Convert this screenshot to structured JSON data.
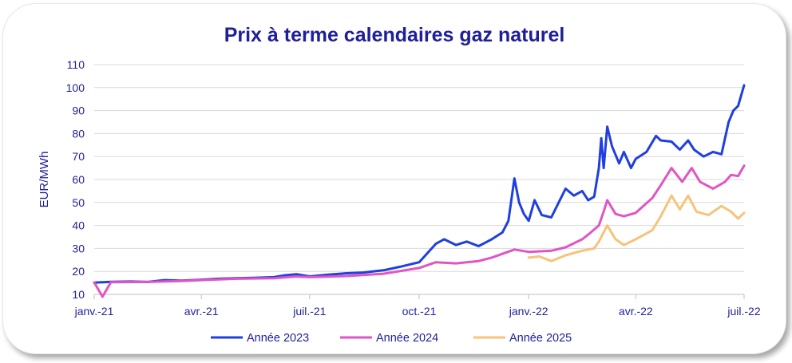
{
  "chart_data": {
    "type": "line",
    "title": "Prix à terme calendaires gaz naturel",
    "ylabel": "EUR/MWh",
    "xlabel": "",
    "ylim": [
      10,
      110
    ],
    "yticks": [
      "10",
      "20",
      "30",
      "40",
      "50",
      "60",
      "70",
      "80",
      "90",
      "100",
      "110"
    ],
    "xticks": [
      {
        "label": "janv.-21",
        "date": "2021-01-01"
      },
      {
        "label": "avr.-21",
        "date": "2021-04-01"
      },
      {
        "label": "juil.-21",
        "date": "2021-07-01"
      },
      {
        "label": "oct.-21",
        "date": "2021-10-01"
      },
      {
        "label": "janv.-22",
        "date": "2022-01-01"
      },
      {
        "label": "avr.-22",
        "date": "2022-04-01"
      },
      {
        "label": "juil.-22",
        "date": "2022-07-01"
      }
    ],
    "grid": "horizontal",
    "legend": "bottom",
    "series": [
      {
        "name": "Année 2023",
        "color": "#1f3fe0",
        "points": [
          [
            "2021-01-01",
            15.1
          ],
          [
            "2021-01-15",
            15.5
          ],
          [
            "2021-02-01",
            15.6
          ],
          [
            "2021-02-15",
            15.4
          ],
          [
            "2021-03-01",
            16.2
          ],
          [
            "2021-03-15",
            16.0
          ],
          [
            "2021-04-01",
            16.4
          ],
          [
            "2021-04-15",
            16.8
          ],
          [
            "2021-05-01",
            17.0
          ],
          [
            "2021-05-15",
            17.2
          ],
          [
            "2021-06-01",
            17.5
          ],
          [
            "2021-06-10",
            18.3
          ],
          [
            "2021-06-20",
            18.8
          ],
          [
            "2021-07-01",
            17.8
          ],
          [
            "2021-07-15",
            18.5
          ],
          [
            "2021-08-01",
            19.2
          ],
          [
            "2021-08-15",
            19.5
          ],
          [
            "2021-09-01",
            20.5
          ],
          [
            "2021-09-15",
            22.0
          ],
          [
            "2021-10-01",
            24.0
          ],
          [
            "2021-10-08",
            28.0
          ],
          [
            "2021-10-15",
            32.0
          ],
          [
            "2021-10-22",
            34.0
          ],
          [
            "2021-11-01",
            31.5
          ],
          [
            "2021-11-10",
            33.0
          ],
          [
            "2021-11-20",
            31.0
          ],
          [
            "2021-12-01",
            34.0
          ],
          [
            "2021-12-10",
            37.0
          ],
          [
            "2021-12-15",
            42.0
          ],
          [
            "2021-12-20",
            60.5
          ],
          [
            "2021-12-24",
            50.0
          ],
          [
            "2021-12-28",
            45.0
          ],
          [
            "2022-01-01",
            42.0
          ],
          [
            "2022-01-06",
            51.0
          ],
          [
            "2022-01-12",
            44.5
          ],
          [
            "2022-01-20",
            43.5
          ],
          [
            "2022-02-01",
            56.0
          ],
          [
            "2022-02-08",
            53.0
          ],
          [
            "2022-02-15",
            55.0
          ],
          [
            "2022-02-20",
            51.0
          ],
          [
            "2022-02-25",
            52.5
          ],
          [
            "2022-03-01",
            65.0
          ],
          [
            "2022-03-03",
            78.0
          ],
          [
            "2022-03-05",
            65.0
          ],
          [
            "2022-03-08",
            83.0
          ],
          [
            "2022-03-12",
            74.5
          ],
          [
            "2022-03-18",
            67.0
          ],
          [
            "2022-03-22",
            72.0
          ],
          [
            "2022-03-28",
            65.0
          ],
          [
            "2022-04-01",
            69.0
          ],
          [
            "2022-04-10",
            72.0
          ],
          [
            "2022-04-18",
            79.0
          ],
          [
            "2022-04-22",
            77.0
          ],
          [
            "2022-05-01",
            76.5
          ],
          [
            "2022-05-08",
            73.0
          ],
          [
            "2022-05-15",
            77.0
          ],
          [
            "2022-05-20",
            73.0
          ],
          [
            "2022-05-28",
            70.0
          ],
          [
            "2022-06-05",
            72.0
          ],
          [
            "2022-06-12",
            71.0
          ],
          [
            "2022-06-18",
            85.0
          ],
          [
            "2022-06-22",
            90.0
          ],
          [
            "2022-06-26",
            92.0
          ],
          [
            "2022-07-01",
            101.0
          ]
        ]
      },
      {
        "name": "Année 2024",
        "color": "#e055c5",
        "points": [
          [
            "2021-01-01",
            15.2
          ],
          [
            "2021-01-08",
            9.0
          ],
          [
            "2021-01-15",
            15.3
          ],
          [
            "2021-02-15",
            15.4
          ],
          [
            "2021-03-15",
            15.8
          ],
          [
            "2021-04-01",
            16.2
          ],
          [
            "2021-05-01",
            16.8
          ],
          [
            "2021-06-01",
            17.0
          ],
          [
            "2021-06-20",
            17.8
          ],
          [
            "2021-07-01",
            17.5
          ],
          [
            "2021-08-01",
            18.0
          ],
          [
            "2021-09-01",
            19.0
          ],
          [
            "2021-10-01",
            21.5
          ],
          [
            "2021-10-15",
            24.0
          ],
          [
            "2021-11-01",
            23.5
          ],
          [
            "2021-11-20",
            24.5
          ],
          [
            "2021-12-01",
            26.0
          ],
          [
            "2021-12-20",
            29.5
          ],
          [
            "2022-01-01",
            28.5
          ],
          [
            "2022-01-20",
            29.0
          ],
          [
            "2022-02-01",
            30.5
          ],
          [
            "2022-02-15",
            34.0
          ],
          [
            "2022-02-20",
            36.0
          ],
          [
            "2022-03-01",
            40.0
          ],
          [
            "2022-03-05",
            46.0
          ],
          [
            "2022-03-08",
            51.0
          ],
          [
            "2022-03-15",
            45.0
          ],
          [
            "2022-03-22",
            44.0
          ],
          [
            "2022-04-01",
            45.5
          ],
          [
            "2022-04-15",
            52.0
          ],
          [
            "2022-04-22",
            57.5
          ],
          [
            "2022-05-01",
            65.0
          ],
          [
            "2022-05-10",
            59.0
          ],
          [
            "2022-05-18",
            65.0
          ],
          [
            "2022-05-25",
            59.0
          ],
          [
            "2022-06-05",
            56.0
          ],
          [
            "2022-06-15",
            59.0
          ],
          [
            "2022-06-20",
            62.0
          ],
          [
            "2022-06-26",
            61.5
          ],
          [
            "2022-07-01",
            66.0
          ]
        ]
      },
      {
        "name": "Année 2025",
        "color": "#f7c37a",
        "points": [
          [
            "2022-01-01",
            26.0
          ],
          [
            "2022-01-10",
            26.5
          ],
          [
            "2022-01-20",
            24.5
          ],
          [
            "2022-02-01",
            27.0
          ],
          [
            "2022-02-15",
            29.0
          ],
          [
            "2022-02-25",
            30.0
          ],
          [
            "2022-03-01",
            33.0
          ],
          [
            "2022-03-08",
            40.0
          ],
          [
            "2022-03-15",
            34.0
          ],
          [
            "2022-03-22",
            31.5
          ],
          [
            "2022-04-01",
            34.0
          ],
          [
            "2022-04-15",
            38.0
          ],
          [
            "2022-04-22",
            44.0
          ],
          [
            "2022-05-01",
            53.0
          ],
          [
            "2022-05-08",
            47.0
          ],
          [
            "2022-05-15",
            53.0
          ],
          [
            "2022-05-22",
            46.0
          ],
          [
            "2022-06-01",
            44.5
          ],
          [
            "2022-06-12",
            48.5
          ],
          [
            "2022-06-20",
            46.0
          ],
          [
            "2022-06-26",
            43.0
          ],
          [
            "2022-07-01",
            45.5
          ]
        ]
      }
    ]
  }
}
